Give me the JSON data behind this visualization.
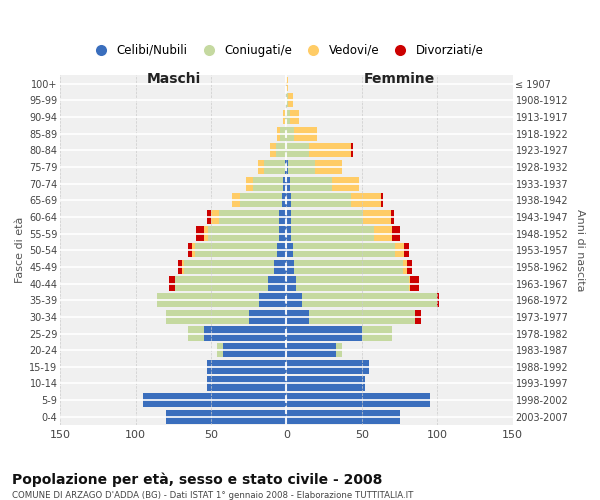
{
  "age_groups": [
    "0-4",
    "5-9",
    "10-14",
    "15-19",
    "20-24",
    "25-29",
    "30-34",
    "35-39",
    "40-44",
    "45-49",
    "50-54",
    "55-59",
    "60-64",
    "65-69",
    "70-74",
    "75-79",
    "80-84",
    "85-89",
    "90-94",
    "95-99",
    "100+"
  ],
  "birth_years": [
    "2003-2007",
    "1998-2002",
    "1993-1997",
    "1988-1992",
    "1983-1987",
    "1978-1982",
    "1973-1977",
    "1968-1972",
    "1963-1967",
    "1958-1962",
    "1953-1957",
    "1948-1952",
    "1943-1947",
    "1938-1942",
    "1933-1937",
    "1928-1932",
    "1923-1927",
    "1918-1922",
    "1913-1917",
    "1908-1912",
    "≤ 1907"
  ],
  "colors": {
    "single": "#3A6EBD",
    "married": "#C5D9A0",
    "widowed": "#FFCC66",
    "divorced": "#CC0000"
  },
  "males": {
    "single": [
      80,
      95,
      53,
      53,
      42,
      55,
      25,
      18,
      12,
      8,
      6,
      5,
      5,
      3,
      2,
      1,
      0,
      0,
      0,
      0,
      0
    ],
    "married": [
      0,
      0,
      0,
      0,
      4,
      10,
      55,
      68,
      62,
      60,
      55,
      47,
      40,
      28,
      20,
      14,
      7,
      4,
      1,
      0,
      0
    ],
    "widowed": [
      0,
      0,
      0,
      0,
      0,
      0,
      0,
      0,
      0,
      1,
      2,
      3,
      5,
      5,
      5,
      4,
      4,
      2,
      1,
      0,
      0
    ],
    "divorced": [
      0,
      0,
      0,
      0,
      0,
      0,
      0,
      0,
      4,
      3,
      2,
      5,
      3,
      0,
      0,
      0,
      0,
      0,
      0,
      0,
      0
    ]
  },
  "females": {
    "single": [
      75,
      95,
      52,
      55,
      33,
      50,
      15,
      10,
      6,
      5,
      4,
      3,
      3,
      3,
      2,
      1,
      0,
      0,
      0,
      0,
      0
    ],
    "married": [
      0,
      0,
      0,
      0,
      4,
      20,
      70,
      90,
      75,
      72,
      68,
      55,
      48,
      40,
      28,
      18,
      15,
      5,
      2,
      1,
      0
    ],
    "widowed": [
      0,
      0,
      0,
      0,
      0,
      0,
      0,
      0,
      1,
      3,
      6,
      12,
      18,
      20,
      18,
      18,
      28,
      15,
      6,
      3,
      1
    ],
    "divorced": [
      0,
      0,
      0,
      0,
      0,
      0,
      4,
      1,
      6,
      3,
      3,
      5,
      2,
      1,
      0,
      0,
      1,
      0,
      0,
      0,
      0
    ]
  },
  "title": "Popolazione per età, sesso e stato civile - 2008",
  "subtitle": "COMUNE DI ARZAGO D'ADDA (BG) - Dati ISTAT 1° gennaio 2008 - Elaborazione TUTTITALIA.IT",
  "xlabel_left": "Maschi",
  "xlabel_right": "Femmine",
  "ylabel_left": "Fasce di età",
  "ylabel_right": "Anni di nascita",
  "xlim": 150,
  "background_color": "#ffffff",
  "plot_bg_color": "#f0f0f0",
  "grid_color": "#ffffff",
  "legend_labels": [
    "Celibi/Nubili",
    "Coniugati/e",
    "Vedovi/e",
    "Divorziati/e"
  ]
}
